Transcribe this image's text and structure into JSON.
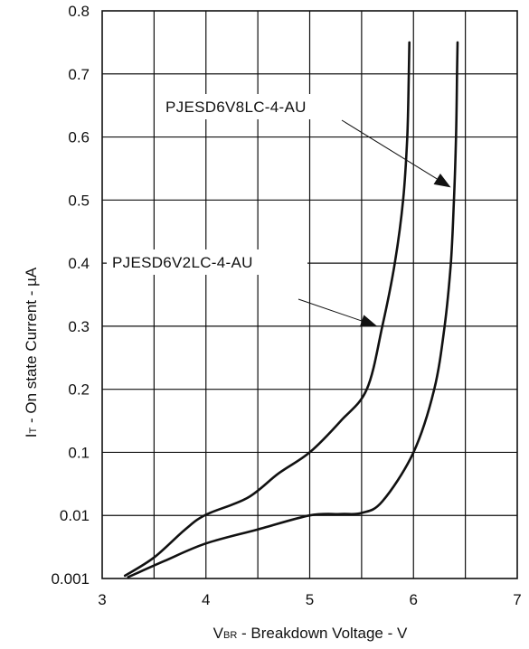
{
  "chart_data": {
    "type": "line",
    "title": "",
    "xlabel": {
      "main": "V",
      "sub": "BR",
      "rest": " - Breakdown Voltage - V"
    },
    "ylabel": {
      "main": "I",
      "sub": "T",
      "rest": " - On state Current - µA"
    },
    "xlim": [
      3,
      7
    ],
    "x_ticks": [
      "3",
      "4",
      "5",
      "6",
      "7"
    ],
    "y_ticks": [
      "0.001",
      "0.01",
      "0.1",
      "0.2",
      "0.3",
      "0.4",
      "0.5",
      "0.6",
      "0.7",
      "0.8"
    ],
    "y_scale": "nonuniform: equal spacing per tick label",
    "grid": true,
    "series": [
      {
        "name": "PJESD6V2LC-4-AU",
        "points": [
          [
            3.22,
            0.0014
          ],
          [
            3.5,
            0.004
          ],
          [
            3.8,
            0.008
          ],
          [
            4.0,
            0.011
          ],
          [
            4.4,
            0.035
          ],
          [
            4.7,
            0.07
          ],
          [
            5.0,
            0.1
          ],
          [
            5.3,
            0.15
          ],
          [
            5.55,
            0.2
          ],
          [
            5.7,
            0.3
          ],
          [
            5.82,
            0.4
          ],
          [
            5.9,
            0.5
          ],
          [
            5.94,
            0.6
          ],
          [
            5.955,
            0.7
          ],
          [
            5.96,
            0.75
          ]
        ]
      },
      {
        "name": "PJESD6V8LC-4-AU",
        "points": [
          [
            3.25,
            0.0012
          ],
          [
            3.6,
            0.0035
          ],
          [
            4.0,
            0.006
          ],
          [
            4.5,
            0.008
          ],
          [
            5.0,
            0.01
          ],
          [
            5.3,
            0.012
          ],
          [
            5.5,
            0.0135
          ],
          [
            5.7,
            0.03
          ],
          [
            6.0,
            0.1
          ],
          [
            6.2,
            0.2
          ],
          [
            6.3,
            0.3
          ],
          [
            6.36,
            0.4
          ],
          [
            6.39,
            0.5
          ],
          [
            6.41,
            0.6
          ],
          [
            6.42,
            0.7
          ],
          [
            6.425,
            0.75
          ]
        ]
      }
    ],
    "annotations": [
      {
        "text": "PJESD6V8LC-4-AU",
        "series": 1,
        "at": [
          6.36,
          0.52
        ]
      },
      {
        "text": "PJESD6V2LC-4-AU",
        "series": 0,
        "at": [
          5.65,
          0.3
        ]
      }
    ]
  }
}
